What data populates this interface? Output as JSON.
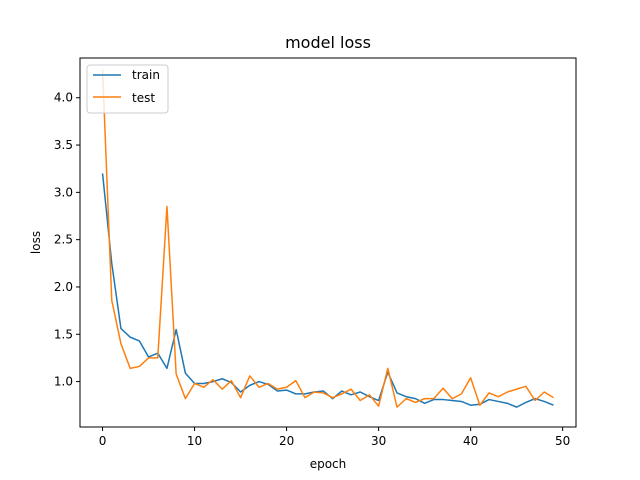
{
  "chart_data": {
    "type": "line",
    "title": "model loss",
    "xlabel": "epoch",
    "ylabel": "loss",
    "xlim": [
      -2.45,
      51.45
    ],
    "ylim": [
      0.52,
      4.42
    ],
    "xticks": [
      0,
      10,
      20,
      30,
      40,
      50
    ],
    "yticks": [
      1.0,
      1.5,
      2.0,
      2.5,
      3.0,
      3.5,
      4.0
    ],
    "ytick_labels": [
      "1.0",
      "1.5",
      "2.0",
      "2.5",
      "3.0",
      "3.5",
      "4.0"
    ],
    "legend_position": "upper-left",
    "x": [
      0,
      1,
      2,
      3,
      4,
      5,
      6,
      7,
      8,
      9,
      10,
      11,
      12,
      13,
      14,
      15,
      16,
      17,
      18,
      19,
      20,
      21,
      22,
      23,
      24,
      25,
      26,
      27,
      28,
      29,
      30,
      31,
      32,
      33,
      34,
      35,
      36,
      37,
      38,
      39,
      40,
      41,
      42,
      43,
      44,
      45,
      46,
      47,
      48,
      49
    ],
    "series": [
      {
        "name": "train",
        "color": "#1f77b4",
        "values": [
          3.2,
          2.25,
          1.56,
          1.47,
          1.43,
          1.26,
          1.3,
          1.14,
          1.55,
          1.09,
          0.98,
          0.98,
          1.0,
          1.03,
          0.99,
          0.89,
          0.96,
          1.0,
          0.97,
          0.9,
          0.91,
          0.87,
          0.87,
          0.89,
          0.9,
          0.82,
          0.9,
          0.86,
          0.89,
          0.84,
          0.8,
          1.1,
          0.88,
          0.84,
          0.82,
          0.77,
          0.81,
          0.81,
          0.8,
          0.79,
          0.75,
          0.76,
          0.81,
          0.79,
          0.77,
          0.73,
          0.78,
          0.82,
          0.79,
          0.75
        ]
      },
      {
        "name": "test",
        "color": "#ff7f0e",
        "values": [
          4.3,
          1.86,
          1.4,
          1.14,
          1.16,
          1.25,
          1.25,
          2.85,
          1.08,
          0.82,
          0.98,
          0.94,
          1.02,
          0.92,
          1.01,
          0.83,
          1.06,
          0.94,
          0.98,
          0.92,
          0.94,
          1.01,
          0.83,
          0.89,
          0.88,
          0.83,
          0.87,
          0.92,
          0.8,
          0.86,
          0.74,
          1.14,
          0.73,
          0.82,
          0.78,
          0.82,
          0.82,
          0.93,
          0.82,
          0.87,
          1.04,
          0.75,
          0.88,
          0.84,
          0.89,
          0.92,
          0.95,
          0.8,
          0.89,
          0.83
        ]
      }
    ]
  }
}
